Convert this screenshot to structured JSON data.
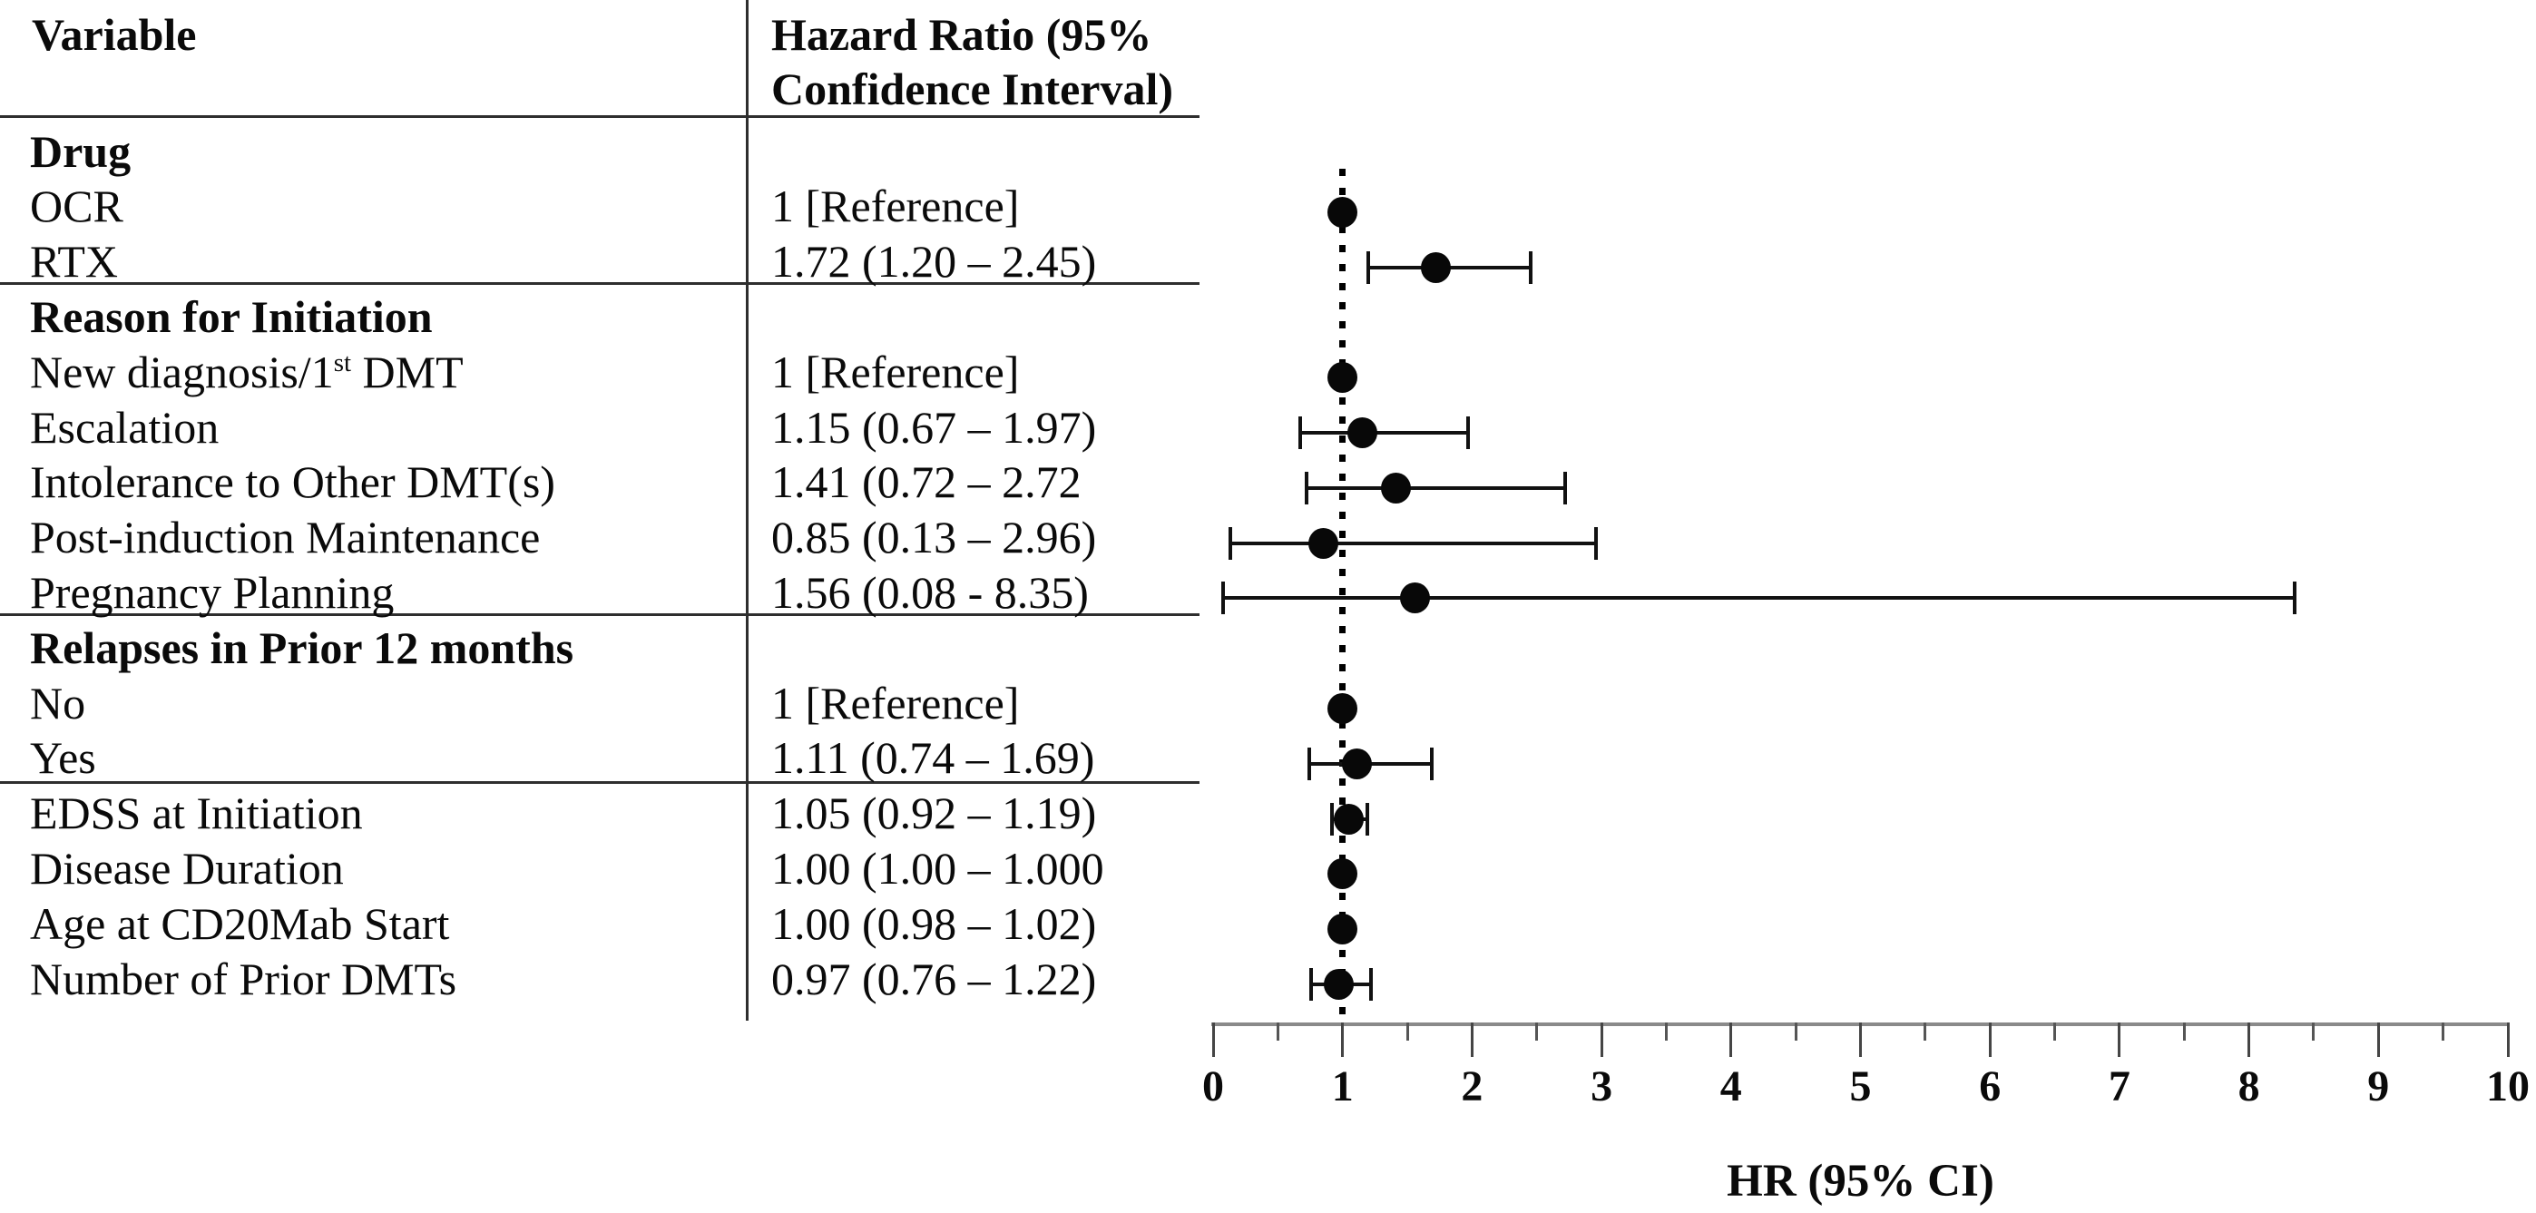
{
  "figure": {
    "table": {
      "header": {
        "col1": "Variable",
        "col2_line1": "Hazard Ratio (95%",
        "col2_line2": "Confidence Interval)"
      },
      "rows": [
        {
          "label": "Drug",
          "bold": true,
          "value": ""
        },
        {
          "label": "OCR",
          "value": "1 [Reference]",
          "marker": {
            "hr": 1.0,
            "lo": null,
            "hi": null
          }
        },
        {
          "label": "RTX",
          "value": "1.72 (1.20 – 2.45)",
          "marker": {
            "hr": 1.72,
            "lo": 1.2,
            "hi": 2.45
          }
        },
        {
          "label": "Reason for Initiation",
          "bold": true,
          "value": ""
        },
        {
          "label": "New diagnosis/1",
          "sup": "st",
          "label_rest": " DMT",
          "value": "1 [Reference]",
          "marker": {
            "hr": 1.0,
            "lo": null,
            "hi": null
          }
        },
        {
          "label": "Escalation",
          "value": "1.15 (0.67 – 1.97)",
          "marker": {
            "hr": 1.15,
            "lo": 0.67,
            "hi": 1.97
          }
        },
        {
          "label": "Intolerance to Other DMT(s)",
          "value": "1.41 (0.72 – 2.72",
          "marker": {
            "hr": 1.41,
            "lo": 0.72,
            "hi": 2.72
          }
        },
        {
          "label": "Post-induction Maintenance",
          "value": "0.85 (0.13 – 2.96)",
          "marker": {
            "hr": 0.85,
            "lo": 0.13,
            "hi": 2.96
          }
        },
        {
          "label": "Pregnancy Planning",
          "value": "1.56 (0.08 - 8.35)",
          "marker": {
            "hr": 1.56,
            "lo": 0.08,
            "hi": 8.35
          }
        },
        {
          "label": "Relapses in Prior 12 months",
          "bold": true,
          "value": ""
        },
        {
          "label": "No",
          "value": "1 [Reference]",
          "marker": {
            "hr": 1.0,
            "lo": null,
            "hi": null
          }
        },
        {
          "label": "Yes",
          "value": "1.11 (0.74 – 1.69)",
          "marker": {
            "hr": 1.11,
            "lo": 0.74,
            "hi": 1.69
          }
        },
        {
          "label": "EDSS at Initiation",
          "value": "1.05 (0.92 – 1.19)",
          "marker": {
            "hr": 1.05,
            "lo": 0.92,
            "hi": 1.19
          }
        },
        {
          "label": "Disease Duration",
          "value": "1.00 (1.00 – 1.000",
          "marker": {
            "hr": 1.0,
            "lo": 1.0,
            "hi": 1.0
          }
        },
        {
          "label": "Age at CD20Mab Start",
          "value": "1.00 (0.98 – 1.02)",
          "marker": {
            "hr": 1.0,
            "lo": 0.98,
            "hi": 1.02
          }
        },
        {
          "label": "Number of Prior DMTs",
          "value": "0.97 (0.76 – 1.22)",
          "marker": {
            "hr": 0.97,
            "lo": 0.76,
            "hi": 1.22
          }
        }
      ]
    },
    "axis": {
      "title": "HR (95% CI)",
      "tick_labels": [
        "0",
        "1",
        "2",
        "3",
        "4",
        "5",
        "6",
        "7",
        "8",
        "9",
        "10"
      ]
    }
  },
  "chart_data": {
    "type": "scatter",
    "subtype": "forest-plot",
    "xlabel": "HR (95% CI)",
    "xlim": [
      0,
      10
    ],
    "x_major_ticks": [
      0,
      1,
      2,
      3,
      4,
      5,
      6,
      7,
      8,
      9,
      10
    ],
    "x_minor_tick_step": 0.5,
    "reference_line_x": 1,
    "grid": false,
    "orientation": "horizontal-rows",
    "points": [
      {
        "group": "Drug",
        "name": "OCR",
        "hr": 1.0,
        "ci": null,
        "note": "reference"
      },
      {
        "group": "Drug",
        "name": "RTX",
        "hr": 1.72,
        "ci": [
          1.2,
          2.45
        ]
      },
      {
        "group": "Reason for Initiation",
        "name": "New diagnosis/1st DMT",
        "hr": 1.0,
        "ci": null,
        "note": "reference"
      },
      {
        "group": "Reason for Initiation",
        "name": "Escalation",
        "hr": 1.15,
        "ci": [
          0.67,
          1.97
        ]
      },
      {
        "group": "Reason for Initiation",
        "name": "Intolerance to Other DMT(s)",
        "hr": 1.41,
        "ci": [
          0.72,
          2.72
        ]
      },
      {
        "group": "Reason for Initiation",
        "name": "Post-induction Maintenance",
        "hr": 0.85,
        "ci": [
          0.13,
          2.96
        ]
      },
      {
        "group": "Reason for Initiation",
        "name": "Pregnancy Planning",
        "hr": 1.56,
        "ci": [
          0.08,
          8.35
        ]
      },
      {
        "group": "Relapses in Prior 12 months",
        "name": "No",
        "hr": 1.0,
        "ci": null,
        "note": "reference"
      },
      {
        "group": "Relapses in Prior 12 months",
        "name": "Yes",
        "hr": 1.11,
        "ci": [
          0.74,
          1.69
        ]
      },
      {
        "group": "",
        "name": "EDSS at Initiation",
        "hr": 1.05,
        "ci": [
          0.92,
          1.19
        ]
      },
      {
        "group": "",
        "name": "Disease Duration",
        "hr": 1.0,
        "ci": [
          1.0,
          1.0
        ]
      },
      {
        "group": "",
        "name": "Age at CD20Mab Start",
        "hr": 1.0,
        "ci": [
          0.98,
          1.02
        ]
      },
      {
        "group": "",
        "name": "Number of Prior DMTs",
        "hr": 0.97,
        "ci": [
          0.76,
          1.22
        ]
      }
    ]
  }
}
